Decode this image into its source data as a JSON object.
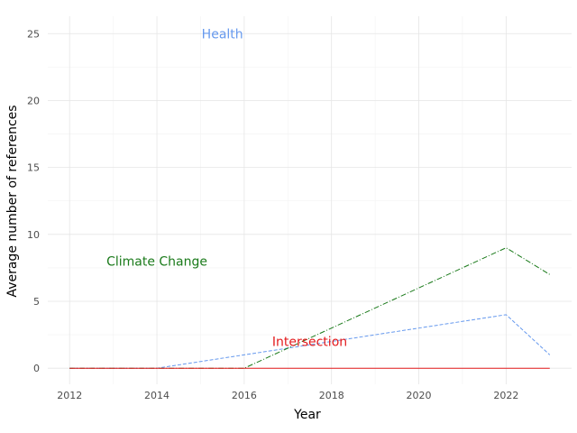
{
  "chart_data": {
    "type": "line",
    "title": "",
    "xlabel": "Year",
    "ylabel": "Average number of references",
    "xlim": [
      2011.5,
      2023.5
    ],
    "ylim": [
      -1.2,
      26.3
    ],
    "x_ticks": [
      2012,
      2014,
      2016,
      2018,
      2020,
      2022
    ],
    "y_ticks": [
      0,
      5,
      10,
      15,
      20,
      25
    ],
    "grid": true,
    "legend": "none",
    "x": [
      2012,
      2014,
      2016,
      2018,
      2020,
      2022,
      2023
    ],
    "series": [
      {
        "values": [
          0,
          0,
          1,
          2,
          3,
          4,
          1
        ],
        "color": "#6699ee",
        "dash": "dashed"
      },
      {
        "values": [
          0,
          0,
          0,
          3,
          6,
          9,
          7
        ],
        "color": "#1a7a1a",
        "dash": "dashdot"
      },
      {
        "values": [
          0,
          0,
          0,
          0,
          0,
          0,
          0
        ],
        "color": "#e31a1c",
        "dash": "solid"
      }
    ],
    "annotations": [
      {
        "text": "Health",
        "x": 2015.5,
        "y": 25,
        "color": "#6699ee"
      },
      {
        "text": "Climate Change",
        "x": 2014.0,
        "y": 8,
        "color": "#1a7a1a"
      },
      {
        "text": "Intersection",
        "x": 2017.5,
        "y": 2,
        "color": "#e31a1c"
      }
    ]
  }
}
